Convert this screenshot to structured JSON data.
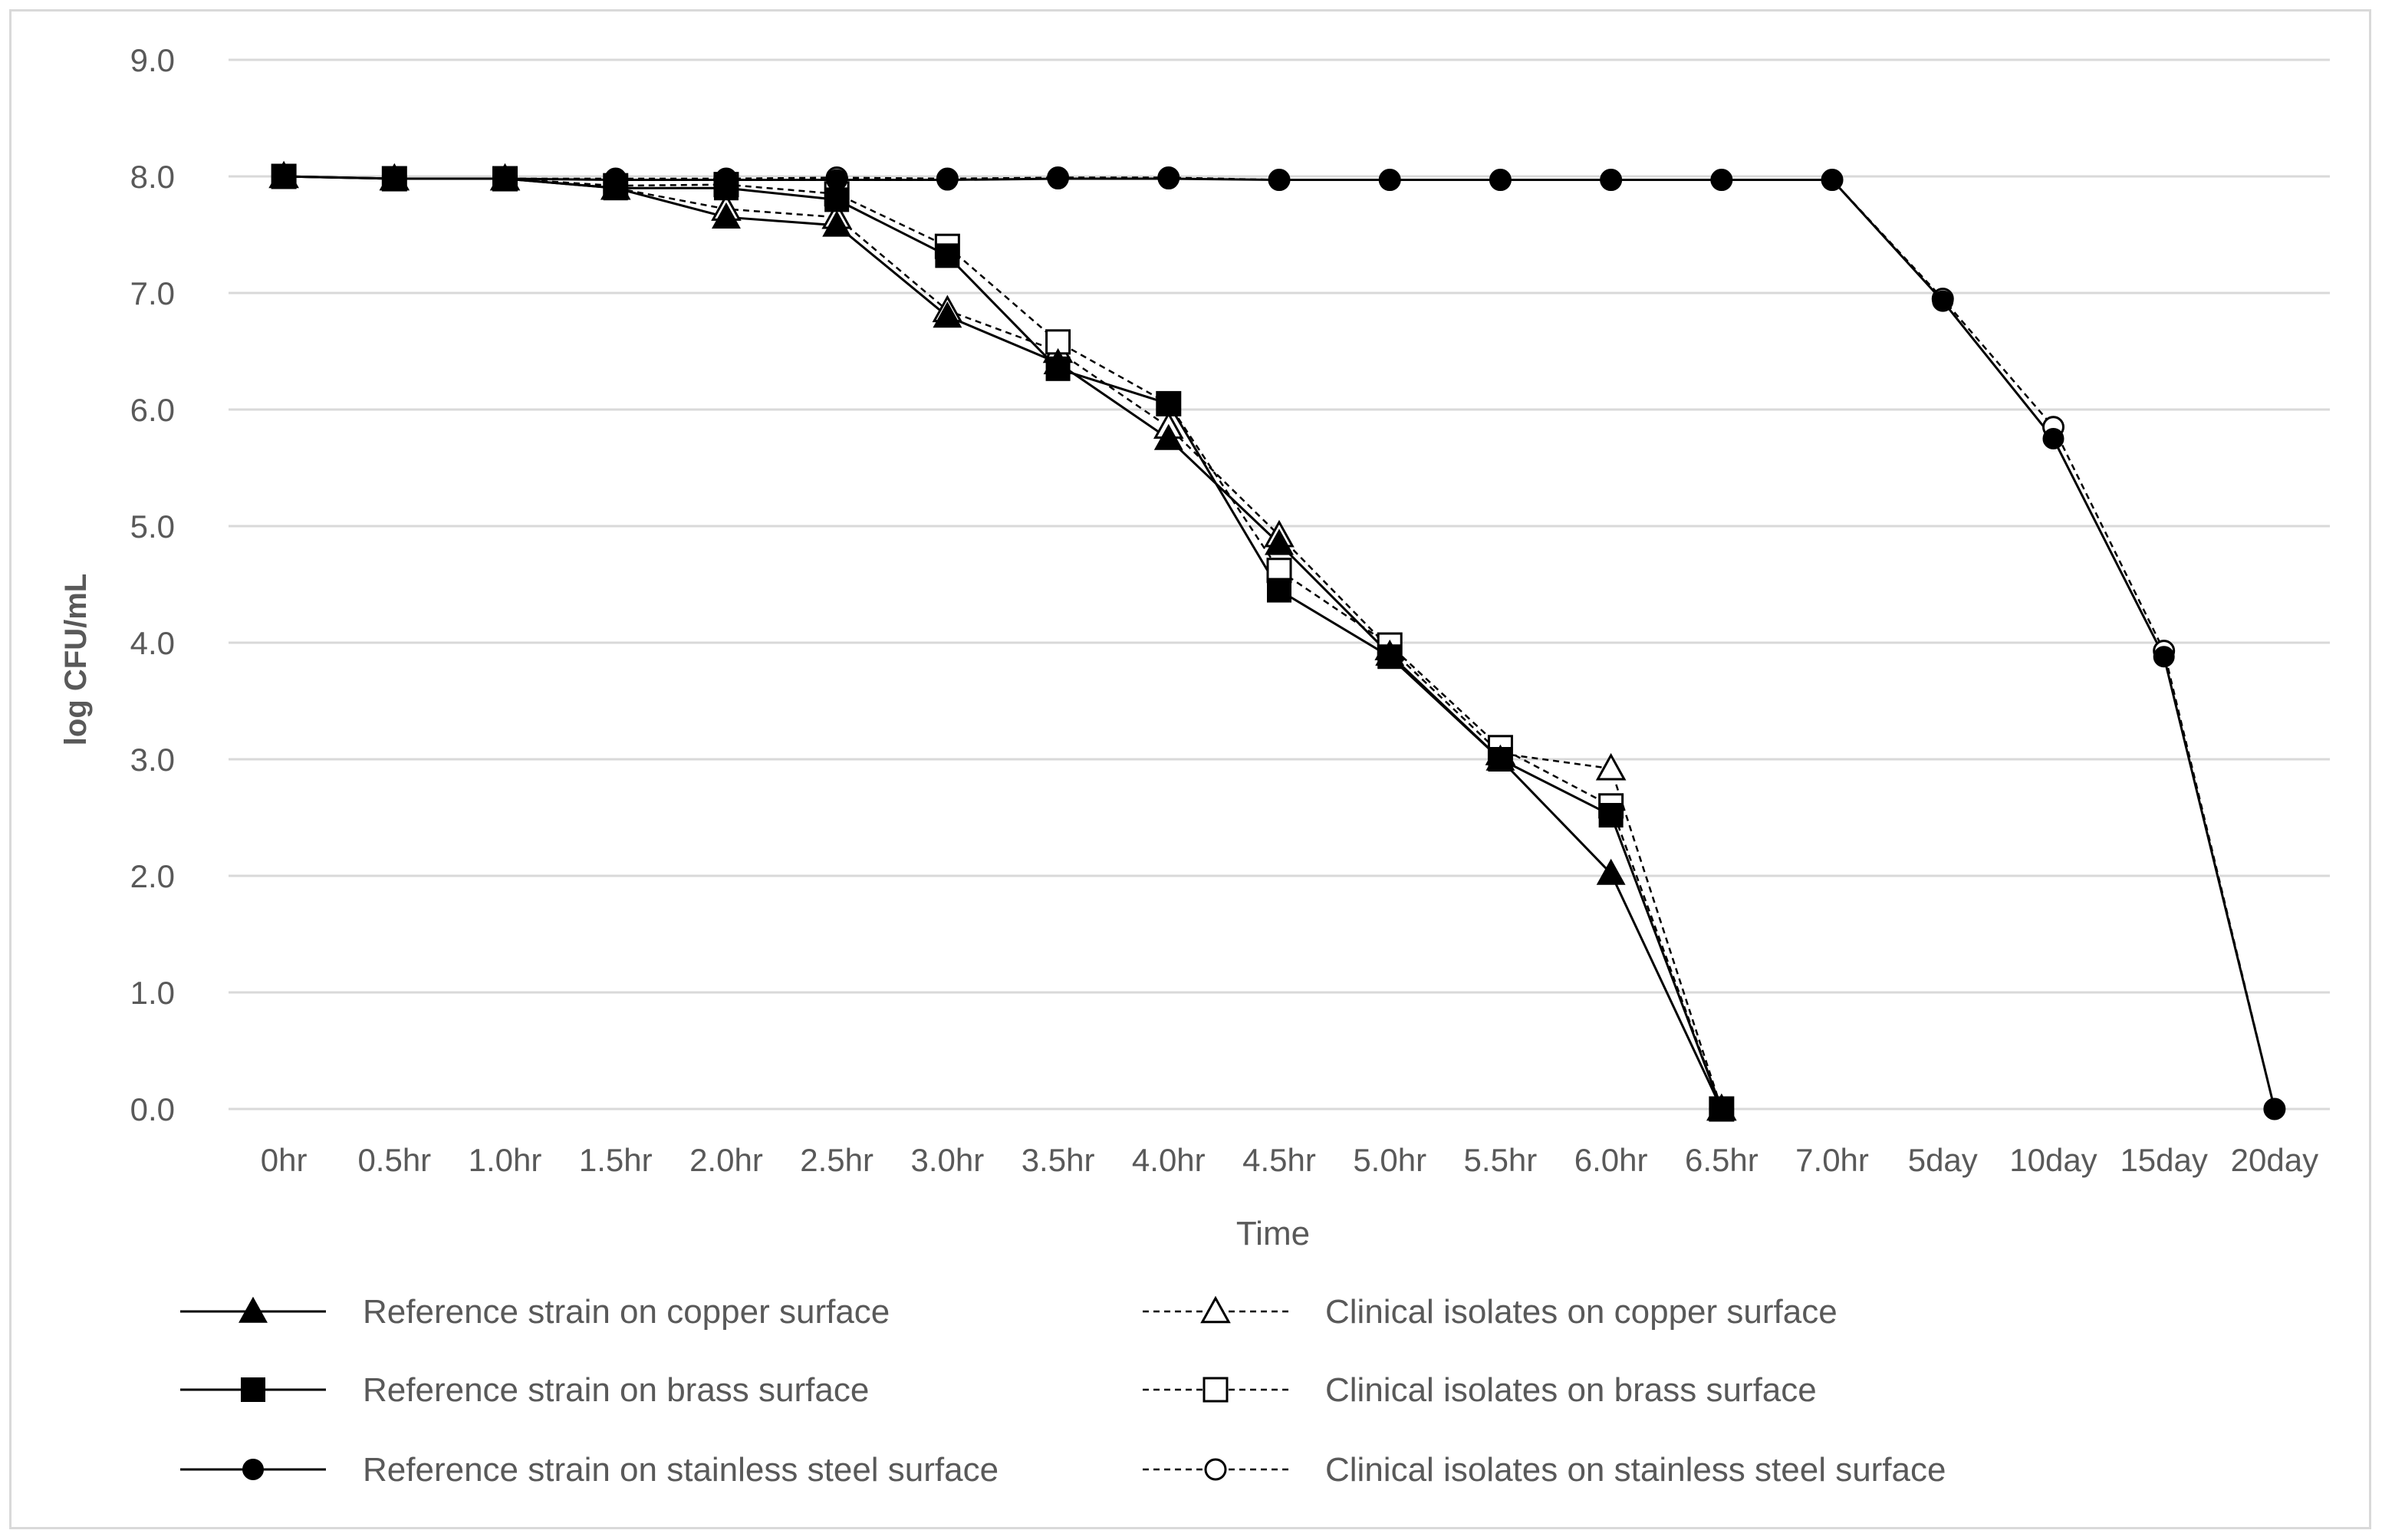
{
  "chart_data": {
    "type": "line",
    "xlabel": "Time",
    "ylabel": "log CFU/mL",
    "ylim": [
      0,
      9
    ],
    "yticks": [
      "0.0",
      "1.0",
      "2.0",
      "3.0",
      "4.0",
      "5.0",
      "6.0",
      "7.0",
      "8.0",
      "9.0"
    ],
    "grid": true,
    "legend_position": "bottom",
    "categories": [
      "0hr",
      "0.5hr",
      "1.0hr",
      "1.5hr",
      "2.0hr",
      "2.5hr",
      "3.0hr",
      "3.5hr",
      "4.0hr",
      "4.5hr",
      "5.0hr",
      "5.5hr",
      "6.0hr",
      "6.5hr",
      "7.0hr",
      "5day",
      "10day",
      "15day",
      "20day"
    ],
    "series": [
      {
        "name": "Reference strain on copper surface",
        "marker": "triangle",
        "fill": "filled",
        "line": "solid",
        "values": [
          8.0,
          7.98,
          7.98,
          7.9,
          7.65,
          7.58,
          6.8,
          6.4,
          5.75,
          4.85,
          3.9,
          3.0,
          2.02,
          0.0,
          null,
          null,
          null,
          null,
          null
        ]
      },
      {
        "name": "Clinical isolates on copper surface",
        "marker": "triangle",
        "fill": "open",
        "line": "dashed",
        "values": [
          8.0,
          7.98,
          7.98,
          7.9,
          7.72,
          7.65,
          6.85,
          6.5,
          5.85,
          4.92,
          3.95,
          3.05,
          2.92,
          0.0,
          null,
          null,
          null,
          null,
          null
        ]
      },
      {
        "name": "Reference strain on brass surface",
        "marker": "square",
        "fill": "filled",
        "line": "solid",
        "values": [
          8.0,
          7.98,
          7.98,
          7.9,
          7.9,
          7.8,
          7.32,
          6.35,
          6.05,
          4.45,
          3.88,
          3.0,
          2.52,
          0.0,
          null,
          null,
          null,
          null,
          null
        ]
      },
      {
        "name": "Clinical isolates on brass surface",
        "marker": "square",
        "fill": "open",
        "line": "dashed",
        "values": [
          8.0,
          7.98,
          7.98,
          7.92,
          7.93,
          7.85,
          7.4,
          6.58,
          6.05,
          4.62,
          3.98,
          3.1,
          2.6,
          0.0,
          null,
          null,
          null,
          null,
          null
        ]
      },
      {
        "name": "Reference strain on stainless steel surface",
        "marker": "circle",
        "fill": "filled",
        "line": "solid",
        "values": [
          8.0,
          7.98,
          7.98,
          7.97,
          7.97,
          7.97,
          7.97,
          7.98,
          7.98,
          7.97,
          7.97,
          7.97,
          7.97,
          7.97,
          7.97,
          6.93,
          5.75,
          3.88,
          0.0
        ]
      },
      {
        "name": "Clinical isolates on stainless steel surface",
        "marker": "circle",
        "fill": "open",
        "line": "dashed",
        "values": [
          8.0,
          7.98,
          7.98,
          7.98,
          7.98,
          7.99,
          7.98,
          7.99,
          7.99,
          7.97,
          7.97,
          7.97,
          7.97,
          7.97,
          7.97,
          6.95,
          5.85,
          3.93,
          0.0
        ]
      }
    ]
  }
}
